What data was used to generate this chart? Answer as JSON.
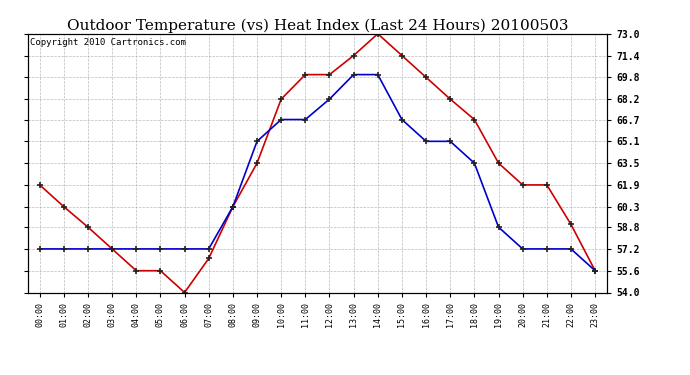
{
  "title": "Outdoor Temperature (vs) Heat Index (Last 24 Hours) 20100503",
  "copyright": "Copyright 2010 Cartronics.com",
  "x_labels": [
    "00:00",
    "01:00",
    "02:00",
    "03:00",
    "04:00",
    "05:00",
    "06:00",
    "07:00",
    "08:00",
    "09:00",
    "10:00",
    "11:00",
    "12:00",
    "13:00",
    "14:00",
    "15:00",
    "16:00",
    "17:00",
    "18:00",
    "19:00",
    "20:00",
    "21:00",
    "22:00",
    "23:00"
  ],
  "red_data": [
    61.9,
    60.3,
    58.8,
    57.2,
    55.6,
    55.6,
    54.0,
    56.5,
    60.3,
    63.5,
    68.2,
    70.0,
    70.0,
    71.4,
    73.0,
    71.4,
    69.8,
    68.2,
    66.7,
    63.5,
    61.9,
    61.9,
    59.0,
    55.6
  ],
  "blue_data": [
    57.2,
    57.2,
    57.2,
    57.2,
    57.2,
    57.2,
    57.2,
    57.2,
    60.3,
    65.1,
    66.7,
    66.7,
    68.2,
    70.0,
    70.0,
    66.7,
    65.1,
    65.1,
    63.5,
    58.8,
    57.2,
    57.2,
    57.2,
    55.6
  ],
  "red_color": "#cc0000",
  "blue_color": "#0000cc",
  "ylim": [
    54.0,
    73.0
  ],
  "yticks": [
    54.0,
    55.6,
    57.2,
    58.8,
    60.3,
    61.9,
    63.5,
    65.1,
    66.7,
    68.2,
    69.8,
    71.4,
    73.0
  ],
  "background_color": "#ffffff",
  "plot_bg_color": "#ffffff",
  "grid_color": "#aaaaaa",
  "title_fontsize": 11,
  "copyright_fontsize": 6.5
}
